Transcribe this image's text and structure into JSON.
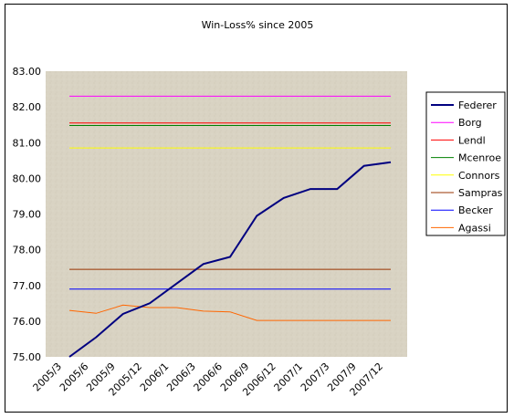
{
  "chart_data": {
    "type": "line",
    "title": "Win-Loss% since 2005",
    "xlabel": "",
    "ylabel": "",
    "ylim": [
      75.0,
      83.0
    ],
    "yticks": [
      "83.00",
      "82.00",
      "81.00",
      "80.00",
      "79.00",
      "78.00",
      "77.00",
      "76.00",
      "75.00"
    ],
    "categories": [
      "2005/3",
      "2005/6",
      "2005/9",
      "2005/12",
      "2006/1",
      "2006/3",
      "2006/6",
      "2006/9",
      "2006/12",
      "2007/1",
      "2007/3",
      "2007/9",
      "2007/12"
    ],
    "legend_position": "right",
    "grid": false,
    "plot_background": "#d8d2c2",
    "series": [
      {
        "name": "Federer",
        "color": "#000080",
        "width": 2,
        "values": [
          74.85,
          75.55,
          76.2,
          76.5,
          77.05,
          77.6,
          77.8,
          78.95,
          79.45,
          79.7,
          79.7,
          80.35,
          80.45
        ]
      },
      {
        "name": "Borg",
        "color": "#ff00ff",
        "width": 1,
        "values": [
          82.3,
          82.3,
          82.3,
          82.3,
          82.3,
          82.3,
          82.3,
          82.3,
          82.3,
          82.3,
          82.3,
          82.3,
          82.3
        ]
      },
      {
        "name": "Lendl",
        "color": "#ff0000",
        "width": 1,
        "values": [
          81.55,
          81.55,
          81.55,
          81.55,
          81.55,
          81.55,
          81.55,
          81.55,
          81.55,
          81.55,
          81.55,
          81.55,
          81.55
        ]
      },
      {
        "name": "Mcenroe",
        "color": "#008000",
        "width": 1,
        "values": [
          81.48,
          81.48,
          81.48,
          81.48,
          81.48,
          81.48,
          81.48,
          81.48,
          81.48,
          81.48,
          81.48,
          81.48,
          81.48
        ]
      },
      {
        "name": "Connors",
        "color": "#ffff00",
        "width": 1,
        "values": [
          80.85,
          80.85,
          80.85,
          80.85,
          80.85,
          80.85,
          80.85,
          80.85,
          80.85,
          80.85,
          80.85,
          80.85,
          80.85
        ]
      },
      {
        "name": "Sampras",
        "color": "#993300",
        "width": 1,
        "values": [
          77.45,
          77.45,
          77.45,
          77.45,
          77.45,
          77.45,
          77.45,
          77.45,
          77.45,
          77.45,
          77.45,
          77.45,
          77.45
        ]
      },
      {
        "name": "Becker",
        "color": "#0000ff",
        "width": 1,
        "values": [
          76.9,
          76.9,
          76.9,
          76.9,
          76.9,
          76.9,
          76.9,
          76.9,
          76.9,
          76.9,
          76.9,
          76.9,
          76.9
        ]
      },
      {
        "name": "Agassi",
        "color": "#ff6600",
        "width": 1,
        "values": [
          76.3,
          76.22,
          76.45,
          76.38,
          76.38,
          76.28,
          76.26,
          76.02,
          76.02,
          76.02,
          76.02,
          76.02,
          76.02
        ]
      }
    ]
  }
}
